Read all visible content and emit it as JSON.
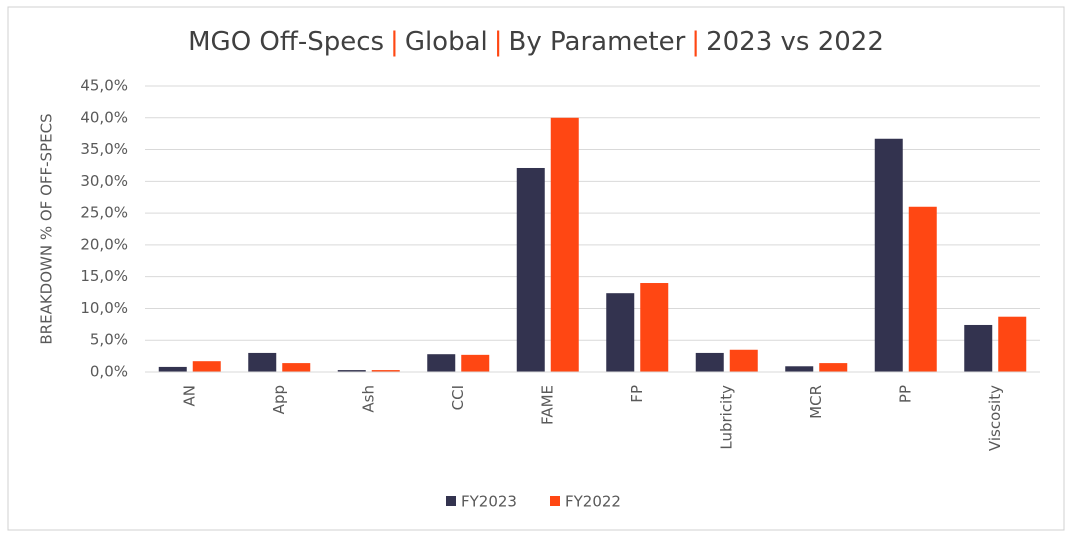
{
  "chart_data": {
    "type": "bar",
    "title_parts": [
      "MGO Off-Specs",
      "Global",
      "By Parameter",
      "2023 vs 2022"
    ],
    "title_separator": "|",
    "y_label": "BREAKDOWN % OF OFF-SPECS",
    "categories": [
      "AN",
      "App",
      "Ash",
      "CCI",
      "FAME",
      "FP",
      "Lubricity",
      "MCR",
      "PP",
      "Viscosity"
    ],
    "series": [
      {
        "name": "FY2023",
        "color": "#33334f",
        "values": [
          0.8,
          3.0,
          0.3,
          2.8,
          32.1,
          12.4,
          3.0,
          0.9,
          36.7,
          7.4
        ]
      },
      {
        "name": "FY2022",
        "color": "#ff4713",
        "values": [
          1.7,
          1.4,
          0.3,
          2.7,
          40.0,
          14.0,
          3.5,
          1.4,
          26.0,
          8.7
        ]
      }
    ],
    "ylim": [
      0,
      45
    ],
    "yticks": [
      {
        "value": 0,
        "label": "0,0%"
      },
      {
        "value": 5,
        "label": "5,0%"
      },
      {
        "value": 10,
        "label": "10,0%"
      },
      {
        "value": 15,
        "label": "15,0%"
      },
      {
        "value": 20,
        "label": "20,0%"
      },
      {
        "value": 25,
        "label": "25,0%"
      },
      {
        "value": 30,
        "label": "30,0%"
      },
      {
        "value": 35,
        "label": "35,0%"
      },
      {
        "value": 40,
        "label": "40,0%"
      },
      {
        "value": 45,
        "label": "45,0%"
      }
    ],
    "grid": true,
    "title_separator_color": "#ff4713",
    "legend": "bottom"
  }
}
